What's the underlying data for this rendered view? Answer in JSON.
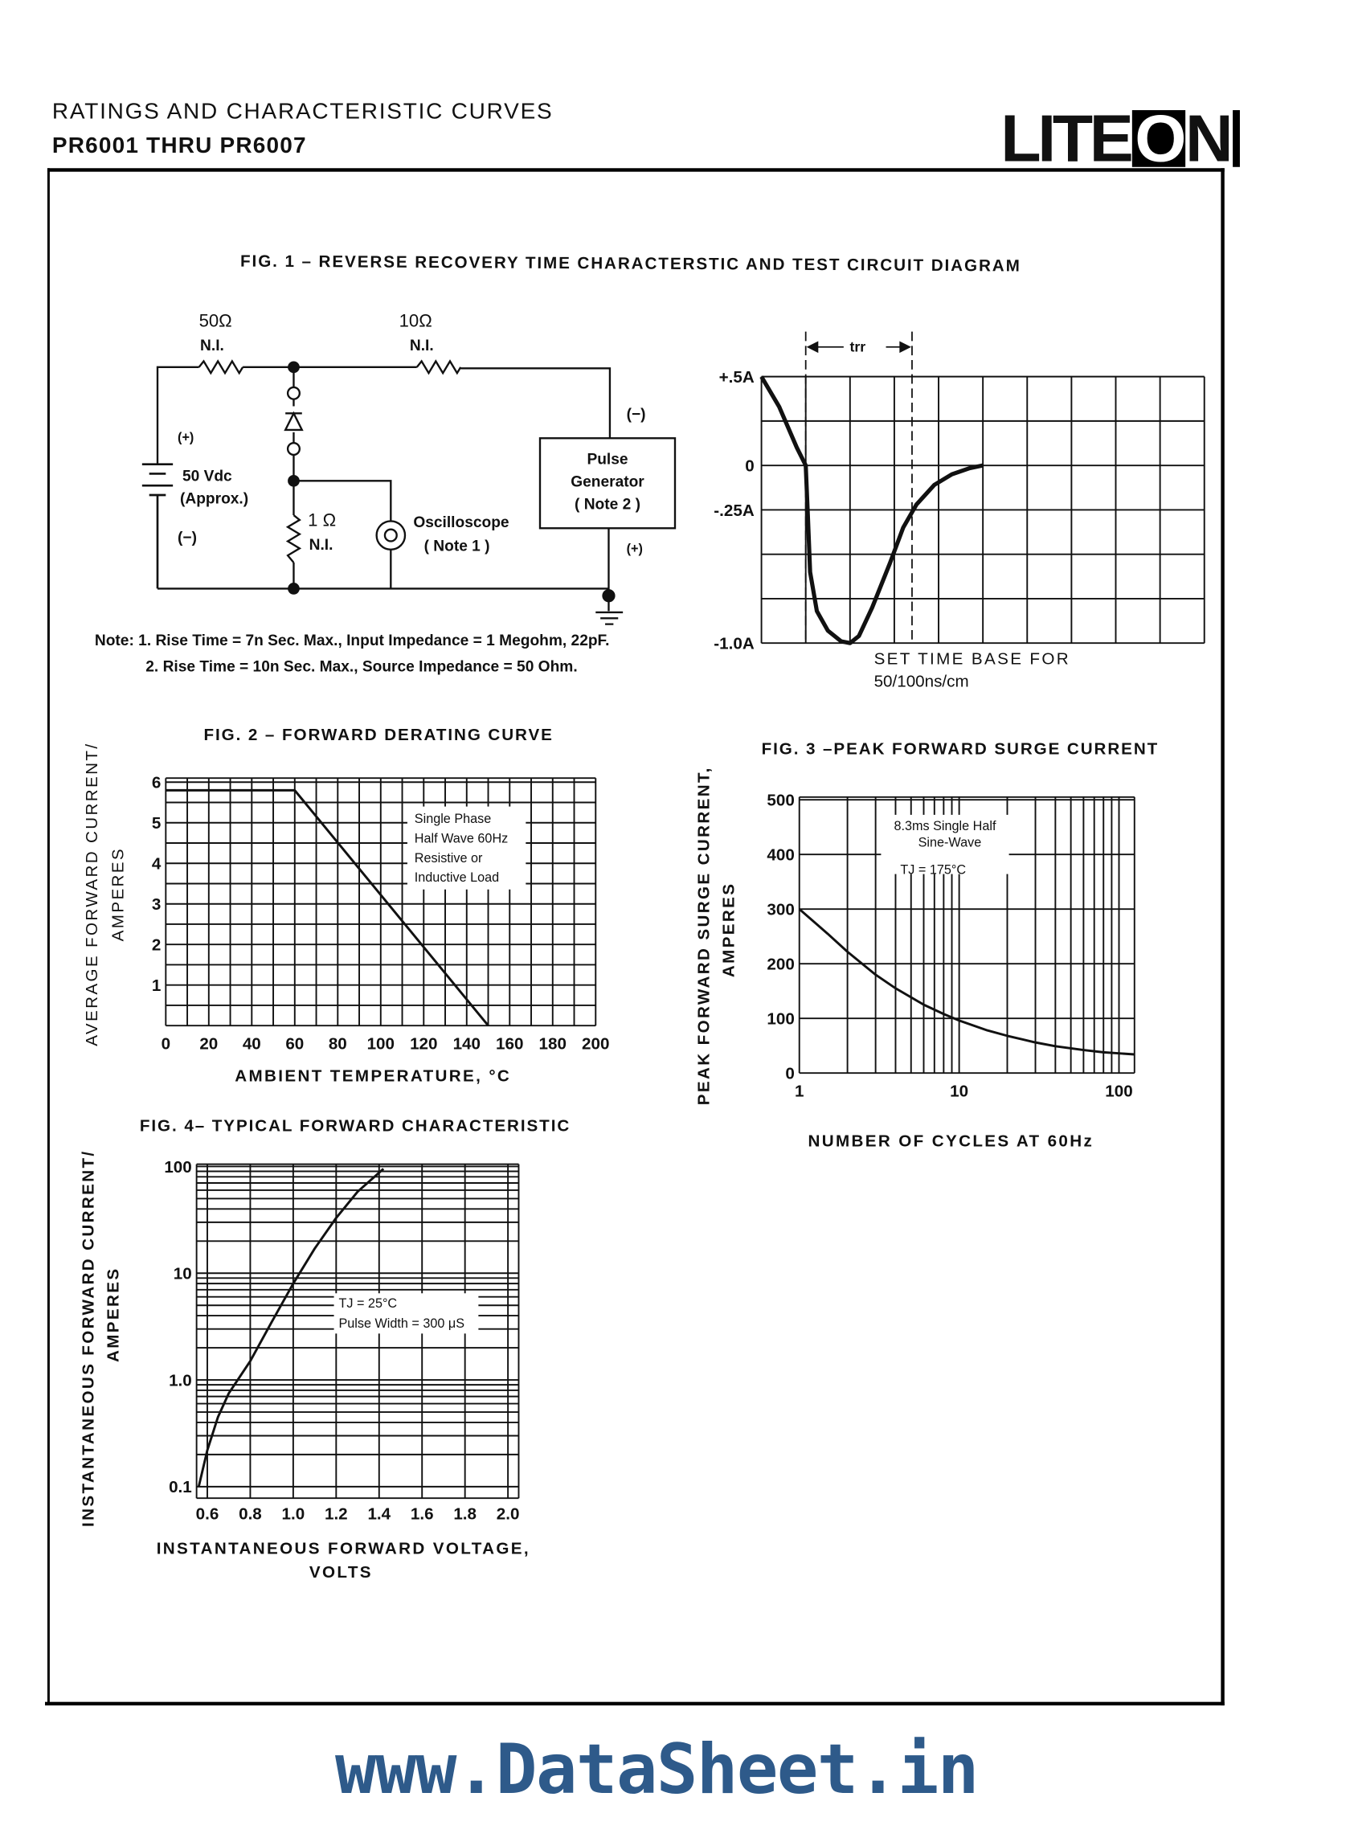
{
  "header": {
    "title_line1": "RATINGS AND CHARACTERISTIC CURVES",
    "title_line2": "PR6001 THRU PR6007",
    "logo_lite": "LITE",
    "logo_o": "O",
    "logo_n": "N"
  },
  "fig1": {
    "title": "FIG. 1 – REVERSE RECOVERY TIME CHARACTERSTIC AND TEST CIRCUIT DIAGRAM",
    "r1_value": "50Ω",
    "r1_note": "N.I.",
    "r2_value": "10Ω",
    "r2_note": "N.I.",
    "battery_plus": "(+)",
    "battery_value": "50 Vdc",
    "battery_approx": "(Approx.)",
    "battery_minus": "(−)",
    "r3_value": "1 Ω",
    "r3_note": "N.I.",
    "oscilloscope": "Oscilloscope",
    "oscilloscope_note": "( Note 1 )",
    "generator_line1": "Pulse",
    "generator_line2": "Generator",
    "generator_line3": "( Note 2 )",
    "generator_minus": "(−)",
    "generator_plus": "(+)",
    "note_line1": "Note: 1. Rise Time = 7n Sec. Max., Input Impedance = 1 Megohm, 22pF.",
    "note_line2": "2. Rise Time = 10n Sec. Max., Source Impedance = 50 Ohm."
  },
  "chart_data": [
    {
      "type": "line",
      "title": "",
      "y_ticks": [
        0.5,
        0,
        -0.25,
        -1.0
      ],
      "y_tick_labels": [
        "+.5A",
        "0",
        "-.25A",
        "-1.0A"
      ],
      "ylim": [
        -1.0,
        0.5
      ],
      "xlim": [
        0,
        10
      ],
      "grid": true,
      "annotation": "trr",
      "trr_range": [
        1.0,
        3.4
      ],
      "xlabel_lines": [
        "SET TIME BASE FOR",
        "50/100ns/cm"
      ],
      "x": [
        0,
        0.4,
        0.8,
        1.0,
        1.05,
        1.1,
        1.25,
        1.5,
        1.8,
        2.0,
        2.2,
        2.5,
        2.9,
        3.2,
        3.5,
        3.9,
        4.3,
        4.7,
        5.0
      ],
      "y": [
        0.5,
        0.33,
        0.1,
        0,
        -0.3,
        -0.6,
        -0.82,
        -0.93,
        -0.99,
        -1.0,
        -0.96,
        -0.8,
        -0.55,
        -0.35,
        -0.22,
        -0.11,
        -0.05,
        -0.015,
        0
      ]
    },
    {
      "type": "line",
      "title": "FIG. 2 – FORWARD DERATING CURVE",
      "xlabel": "AMBIENT TEMPERATURE, °C",
      "ylabel_lines": [
        "AVERAGE FORWARD CURRENT/",
        "AMPERES"
      ],
      "x_ticks": [
        0,
        20,
        40,
        60,
        80,
        100,
        120,
        140,
        160,
        180,
        200
      ],
      "x_tick_labels": [
        "0",
        "20",
        "40",
        "60",
        "80",
        "100",
        "120",
        "140",
        "160",
        "180",
        "200"
      ],
      "y_ticks": [
        1,
        2,
        3,
        4,
        5,
        6
      ],
      "y_tick_labels": [
        "1",
        "2",
        "3",
        "4",
        "5",
        "6"
      ],
      "xlim": [
        0,
        200
      ],
      "ylim": [
        0,
        6.1
      ],
      "grid": true,
      "legend_lines": [
        "Single Phase",
        "Half Wave 60Hz",
        "Resistive or",
        "Inductive Load"
      ],
      "x": [
        0,
        60,
        150
      ],
      "y": [
        5.8,
        5.8,
        0
      ]
    },
    {
      "type": "line",
      "title": "FIG. 3 –PEAK FORWARD SURGE CURRENT",
      "xlabel": "NUMBER OF CYCLES AT 60Hz",
      "ylabel_lines": [
        "PEAK FORWARD SURGE CURRENT,",
        "AMPERES"
      ],
      "x_scale": "log",
      "x_ticks": [
        1,
        10,
        100
      ],
      "x_tick_labels": [
        "1",
        "10",
        "100"
      ],
      "y_ticks": [
        0,
        100,
        200,
        300,
        400,
        500
      ],
      "y_tick_labels": [
        "0",
        "100",
        "200",
        "300",
        "400",
        "500"
      ],
      "xlim": [
        1,
        125
      ],
      "ylim": [
        0,
        505
      ],
      "grid": true,
      "legend_lines": [
        "8.3ms Single Half",
        "Sine-Wave",
        "TJ = 175°C"
      ],
      "x": [
        1,
        1.5,
        2,
        3,
        4,
        6,
        8,
        10,
        15,
        20,
        30,
        40,
        60,
        80,
        100,
        125
      ],
      "y": [
        300,
        255,
        222,
        180,
        155,
        125,
        108,
        96,
        78,
        68,
        56,
        49,
        42,
        38,
        36,
        34
      ]
    },
    {
      "type": "line",
      "title": "FIG. 4– TYPICAL FORWARD CHARACTERISTIC",
      "xlabel_lines": [
        "INSTANTANEOUS FORWARD VOLTAGE,",
        "VOLTS"
      ],
      "ylabel_lines": [
        "INSTANTANEOUS FORWARD CURRENT/",
        "AMPERES"
      ],
      "y_scale": "log",
      "x_ticks": [
        0.6,
        0.8,
        1.0,
        1.2,
        1.4,
        1.6,
        1.8,
        2.0
      ],
      "x_tick_labels": [
        "0.6",
        "0.8",
        "1.0",
        "1.2",
        "1.4",
        "1.6",
        "1.8",
        "2.0"
      ],
      "y_ticks": [
        0.1,
        1,
        10,
        100
      ],
      "y_tick_labels": [
        "0.1",
        "1.0",
        "10",
        "100"
      ],
      "xlim": [
        0.55,
        2.05
      ],
      "ylim": [
        0.078,
        105
      ],
      "grid": true,
      "legend_lines": [
        "TJ = 25°C",
        "Pulse Width = 300 μS"
      ],
      "x": [
        0.56,
        0.6,
        0.65,
        0.7,
        0.8,
        0.9,
        1.0,
        1.1,
        1.2,
        1.3,
        1.42
      ],
      "y": [
        0.1,
        0.22,
        0.45,
        0.75,
        1.5,
        3.5,
        8,
        17,
        33,
        58,
        95
      ]
    }
  ],
  "footer": {
    "watermark": "www.DataSheet.in"
  },
  "colors": {
    "ink": "#111111",
    "watermark": "#2e5a8a"
  }
}
